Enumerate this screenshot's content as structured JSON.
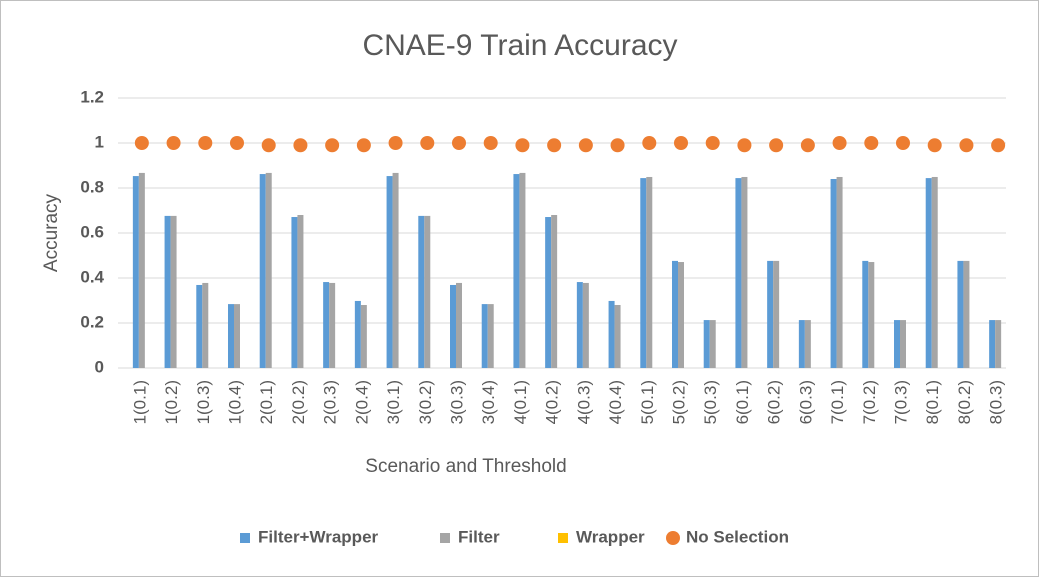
{
  "chart_data": {
    "type": "bar",
    "title": "CNAE-9 Train Accuracy",
    "x_label": "Scenario and Threshold",
    "y_label": "Accuracy",
    "categories": [
      "1(0.1)",
      "1(0.2)",
      "1(0.3)",
      "1(0.4)",
      "2(0.1)",
      "2(0.2)",
      "2(0.3)",
      "2(0.4)",
      "3(0.1)",
      "3(0.2)",
      "3(0.3)",
      "3(0.4)",
      "4(0.1)",
      "4(0.2)",
      "4(0.3)",
      "4(0.4)",
      "5(0.1)",
      "5(0.2)",
      "5(0.3)",
      "6(0.1)",
      "6(0.2)",
      "6(0.3)",
      "7(0.1)",
      "7(0.2)",
      "7(0.3)",
      "8(0.1)",
      "8(0.2)",
      "8(0.3)"
    ],
    "series": [
      {
        "name": "Filter+Wrapper",
        "color": "#5b9bd5",
        "mark": "bar",
        "values": [
          0.853,
          0.676,
          0.369,
          0.284,
          0.862,
          0.671,
          0.382,
          0.298,
          0.853,
          0.676,
          0.369,
          0.284,
          0.862,
          0.671,
          0.382,
          0.298,
          0.844,
          0.476,
          0.213,
          0.844,
          0.476,
          0.213,
          0.84,
          0.476,
          0.213,
          0.844,
          0.476,
          0.213
        ]
      },
      {
        "name": "Filter",
        "color": "#a5a5a5",
        "mark": "bar",
        "values": [
          0.867,
          0.676,
          0.378,
          0.284,
          0.867,
          0.68,
          0.378,
          0.28,
          0.867,
          0.676,
          0.378,
          0.284,
          0.867,
          0.68,
          0.378,
          0.28,
          0.849,
          0.471,
          0.213,
          0.849,
          0.476,
          0.213,
          0.849,
          0.471,
          0.213,
          0.849,
          0.476,
          0.213
        ]
      },
      {
        "name": "Wrapper",
        "color": "#ffc000",
        "mark": "bar",
        "values": [
          0,
          0,
          0,
          0,
          0,
          0,
          0,
          0,
          0,
          0,
          0,
          0,
          0,
          0,
          0,
          0,
          0,
          0,
          0,
          0,
          0,
          0,
          0,
          0,
          0,
          0,
          0,
          0
        ]
      },
      {
        "name": "No Selection",
        "color": "#ed7d31",
        "mark": "dot",
        "values": [
          1,
          1,
          1,
          1,
          0.99,
          0.99,
          0.99,
          0.99,
          1,
          1,
          1,
          1,
          0.99,
          0.99,
          0.99,
          0.99,
          1,
          1,
          1,
          0.99,
          0.99,
          0.99,
          1,
          1,
          1,
          0.99,
          0.99,
          0.99
        ]
      }
    ],
    "ylim": [
      0,
      1.2
    ],
    "yticks": [
      0,
      0.2,
      0.4,
      0.6,
      0.8,
      1,
      1.2
    ],
    "grid": true,
    "legend": "bottom"
  }
}
